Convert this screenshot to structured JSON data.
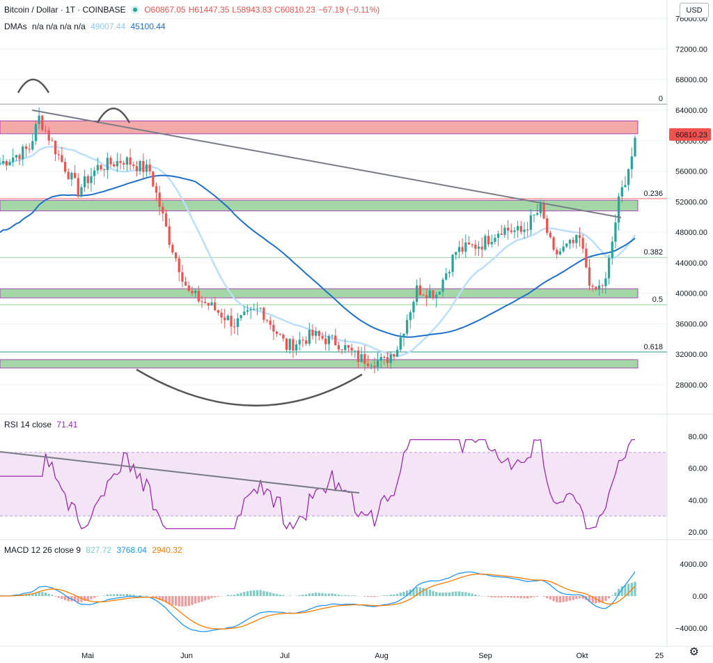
{
  "header": {
    "symbol": "Bitcoin / Dollar · 1T · COINBASE",
    "ohlc": {
      "o": "O60867.05",
      "h": "H61447.35",
      "l": "L58943.83",
      "c": "C60810.23",
      "chg": "−67.19 (−0.11%)"
    },
    "dma_label": "DMAs",
    "dma_na": "n/a n/a n/a n/a",
    "dma_v1": "49007.44",
    "dma_v2": "45100.44",
    "currency": "USD"
  },
  "rsi": {
    "label": "RSI 14 close",
    "value": "71.41",
    "ticks": [
      "80.00",
      "60.00",
      "40.00",
      "20.00"
    ]
  },
  "macd": {
    "label": "MACD 12 26 close 9",
    "v1": "827.72",
    "v2": "3768.04",
    "v3": "2940.32",
    "ticks": [
      "4000.00",
      "0.00",
      "−4000.00"
    ]
  },
  "price_axis": {
    "ticks": [
      "76000.00",
      "72000.00",
      "68000.00",
      "64000.00",
      "60000.00",
      "56000.00",
      "52000.00",
      "48000.00",
      "44000.00",
      "40000.00",
      "36000.00",
      "32000.00",
      "28000.00"
    ],
    "last": "60810.23"
  },
  "fib": [
    {
      "label": "0",
      "price": 64800
    },
    {
      "label": "0.236",
      "price": 52400
    },
    {
      "label": "0.382",
      "price": 44700
    },
    {
      "label": "0.5",
      "price": 38500
    },
    {
      "label": "0.618",
      "price": 32300
    }
  ],
  "zones": [
    {
      "top": 62600,
      "bottom": 60900,
      "color": "#f4a9a9"
    },
    {
      "top": 52200,
      "bottom": 50800,
      "color": "#a5d6a7"
    },
    {
      "top": 40600,
      "bottom": 39400,
      "color": "#a5d6a7"
    },
    {
      "top": 31300,
      "bottom": 30200,
      "color": "#a5d6a7"
    }
  ],
  "dates": [
    "Mai",
    "Jun",
    "Jul",
    "Aug",
    "Sep",
    "Okt",
    "25"
  ],
  "colors": {
    "up": "#26a69a",
    "down": "#ef5350",
    "dma_fast": "#bbdefb",
    "dma_slow": "#1e6fc7",
    "rsi": "#9c27b0",
    "macd": "#2196f3",
    "signal": "#ff7a00"
  }
}
